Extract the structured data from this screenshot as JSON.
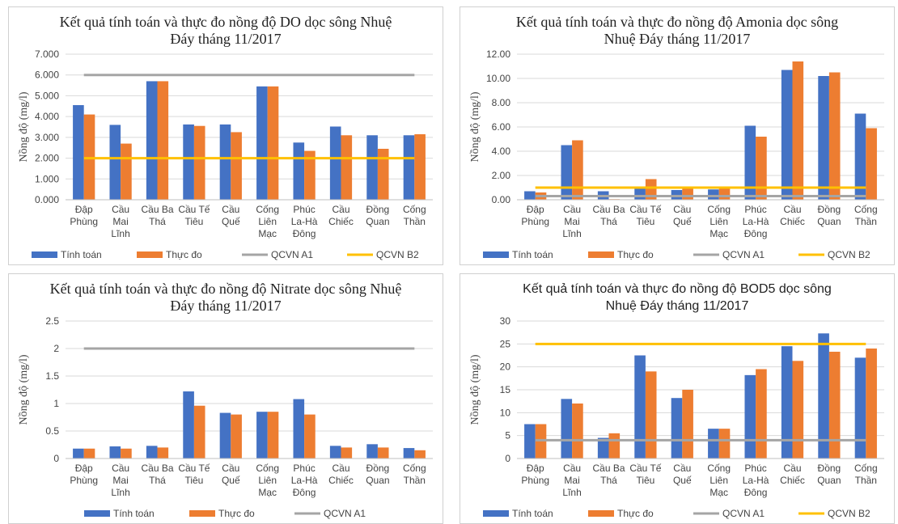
{
  "chart_data": [
    {
      "type": "bar",
      "title": "Kết quả tính toán và thực đo nồng độ DO dọc sông Nhuệ Đáy tháng 11/2017",
      "y_label": "Nồng độ (mg/l)",
      "categories": [
        "Đập Phùng",
        "Cầu Mai Lĩnh",
        "Cầu Ba Thá",
        "Cầu Tế Tiêu",
        "Cầu Quế",
        "Cống Liên Mạc",
        "Phúc La-Hà Đông",
        "Cầu Chiếc",
        "Đồng Quan",
        "Cống Thần"
      ],
      "series": [
        {
          "name": "Tính toán",
          "color": "#4472c4",
          "values": [
            4.55,
            3.6,
            5.7,
            3.62,
            3.62,
            5.45,
            2.75,
            3.52,
            3.1,
            3.1
          ]
        },
        {
          "name": "Thực đo",
          "color": "#ed7d31",
          "values": [
            4.1,
            2.7,
            5.7,
            3.55,
            3.25,
            5.45,
            2.35,
            3.1,
            2.45,
            3.15
          ]
        },
        {
          "name": "QCVN A1",
          "color": "#a5a5a5",
          "type": "line",
          "values": [
            6,
            6,
            6,
            6,
            6,
            6,
            6,
            6,
            6,
            6
          ]
        },
        {
          "name": "QCVN B2",
          "color": "#ffc000",
          "type": "line",
          "values": [
            2,
            2,
            2,
            2,
            2,
            2,
            2,
            2,
            2,
            2
          ]
        }
      ],
      "ylim": [
        0,
        7
      ],
      "yticks": [
        {
          "value": 0,
          "label": "0.000"
        },
        {
          "value": 1,
          "label": "1.000"
        },
        {
          "value": 2,
          "label": "2.000"
        },
        {
          "value": 3,
          "label": "3.000"
        },
        {
          "value": 4,
          "label": "4.000"
        },
        {
          "value": 5,
          "label": "5.000"
        },
        {
          "value": 6,
          "label": "6.000"
        },
        {
          "value": 7,
          "label": "7.000"
        }
      ],
      "grid": true
    },
    {
      "type": "bar",
      "title": "Kết quả tính toán và thực đo nồng độ Amonia dọc sông Nhuệ Đáy tháng 11/2017",
      "y_label": "Nồng độ (mg/l)",
      "categories": [
        "Đập Phùng",
        "Cầu Mai Lĩnh",
        "Cầu Ba Thá",
        "Cầu Tế Tiêu",
        "Cầu Quế",
        "Cống Liên Mạc",
        "Phúc La-Hà Đông",
        "Cầu Chiếc",
        "Đồng Quan",
        "Cống Thần"
      ],
      "series": [
        {
          "name": "Tính toán",
          "color": "#4472c4",
          "values": [
            0.7,
            4.5,
            0.7,
            1.0,
            0.8,
            0.85,
            6.1,
            10.7,
            10.2,
            7.1
          ]
        },
        {
          "name": "Thực đo",
          "color": "#ed7d31",
          "values": [
            0.6,
            4.9,
            0.05,
            1.7,
            1.0,
            1.0,
            5.2,
            11.4,
            10.5,
            5.9
          ]
        },
        {
          "name": "QCVN A1",
          "color": "#a5a5a5",
          "type": "line",
          "values": [
            0.3,
            0.3,
            0.3,
            0.3,
            0.3,
            0.3,
            0.3,
            0.3,
            0.3,
            0.3
          ]
        },
        {
          "name": "QCVN B2",
          "color": "#ffc000",
          "type": "line",
          "values": [
            1,
            1,
            1,
            1,
            1,
            1,
            1,
            1,
            1,
            1
          ]
        }
      ],
      "ylim": [
        0,
        12
      ],
      "yticks": [
        {
          "value": 0,
          "label": "0.00"
        },
        {
          "value": 2,
          "label": "2.00"
        },
        {
          "value": 4,
          "label": "4.00"
        },
        {
          "value": 6,
          "label": "6.00"
        },
        {
          "value": 8,
          "label": "8.00"
        },
        {
          "value": 10,
          "label": "10.00"
        },
        {
          "value": 12,
          "label": "12.00"
        }
      ],
      "grid": true
    },
    {
      "type": "bar",
      "title": "Kết quả tính toán và thực đo nồng độ Nitrate dọc sông Nhuệ Đáy tháng 11/2017",
      "y_label": "Nồng độ (mg/l)",
      "categories": [
        "Đập Phùng",
        "Cầu Mai Lĩnh",
        "Cầu Ba Thá",
        "Cầu Tế Tiêu",
        "Cầu Quế",
        "Cống Liên Mạc",
        "Phúc La-Hà Đông",
        "Cầu Chiếc",
        "Đồng Quan",
        "Cống Thần"
      ],
      "series": [
        {
          "name": "Tính toán",
          "color": "#4472c4",
          "values": [
            0.18,
            0.22,
            0.23,
            1.22,
            0.83,
            0.85,
            1.08,
            0.23,
            0.26,
            0.19
          ]
        },
        {
          "name": "Thực đo",
          "color": "#ed7d31",
          "values": [
            0.18,
            0.18,
            0.2,
            0.96,
            0.8,
            0.85,
            0.8,
            0.2,
            0.2,
            0.15
          ]
        },
        {
          "name": "QCVN A1",
          "color": "#a5a5a5",
          "type": "line",
          "values": [
            2,
            2,
            2,
            2,
            2,
            2,
            2,
            2,
            2,
            2
          ]
        }
      ],
      "ylim": [
        0,
        2.5
      ],
      "yticks": [
        0,
        0.5,
        1,
        1.5,
        2,
        2.5
      ],
      "grid": true
    },
    {
      "type": "bar",
      "title": "Kết quả tính toán và thực đo nồng độ BOD5 dọc sông Nhuệ Đáy tháng 11/2017",
      "y_label": "Nồng độ (mg/l)",
      "categories": [
        "Đập Phùng",
        "Cầu Mai Lĩnh",
        "Cầu Ba Thá",
        "Cầu Tế Tiêu",
        "Cầu Quế",
        "Cống Liên Mạc",
        "Phúc La-Hà Đông",
        "Cầu Chiếc",
        "Đồng Quan",
        "Cống Thần"
      ],
      "series": [
        {
          "name": "Tính toán",
          "color": "#4472c4",
          "values": [
            7.5,
            13,
            4.5,
            22.5,
            13.2,
            6.5,
            18.2,
            24.5,
            27.3,
            22
          ]
        },
        {
          "name": "Thực đo",
          "color": "#ed7d31",
          "values": [
            7.5,
            12,
            5.5,
            19,
            15,
            6.5,
            19.5,
            21.3,
            23.3,
            24
          ]
        },
        {
          "name": "QCVN A1",
          "color": "#a5a5a5",
          "type": "line",
          "values": [
            4,
            4,
            4,
            4,
            4,
            4,
            4,
            4,
            4,
            4
          ]
        },
        {
          "name": "QCVN B2",
          "color": "#ffc000",
          "type": "line",
          "values": [
            25,
            25,
            25,
            25,
            25,
            25,
            25,
            25,
            25,
            25
          ]
        }
      ],
      "ylim": [
        0,
        30
      ],
      "yticks": [
        0,
        5,
        10,
        15,
        20,
        25,
        30
      ],
      "grid": true
    }
  ]
}
